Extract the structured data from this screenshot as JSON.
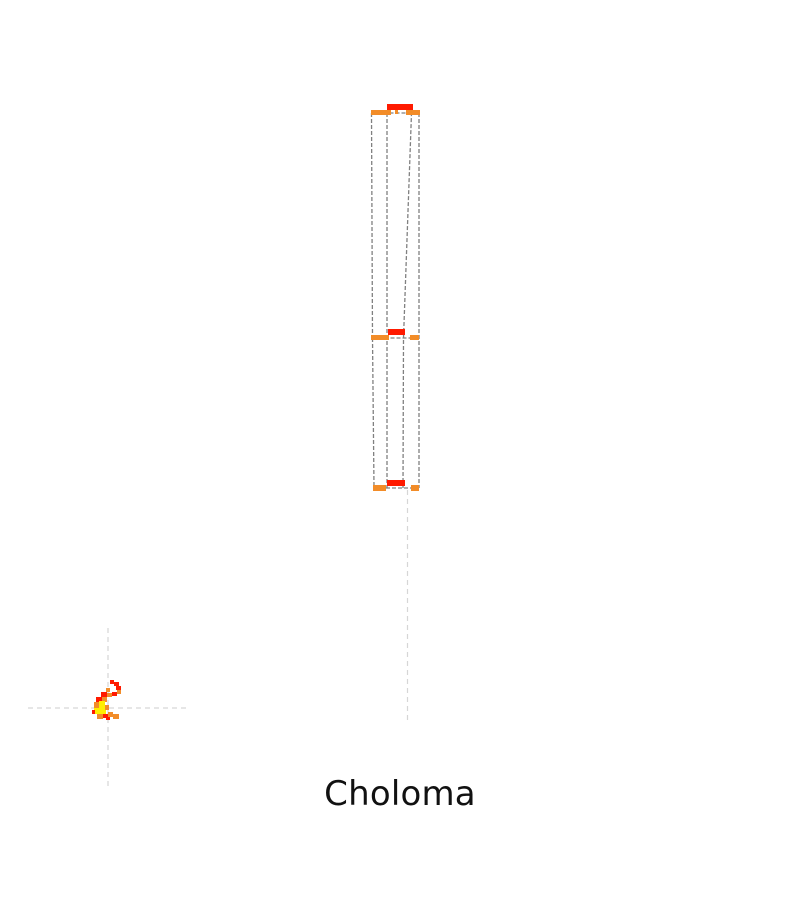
{
  "caption": "Choloma",
  "colors": {
    "background": "#ffffff",
    "guide": "#d6d6d6",
    "outline": "#808080",
    "hot": "#ff1a00",
    "warm": "#f28c28",
    "hottest": "#ffee00"
  }
}
